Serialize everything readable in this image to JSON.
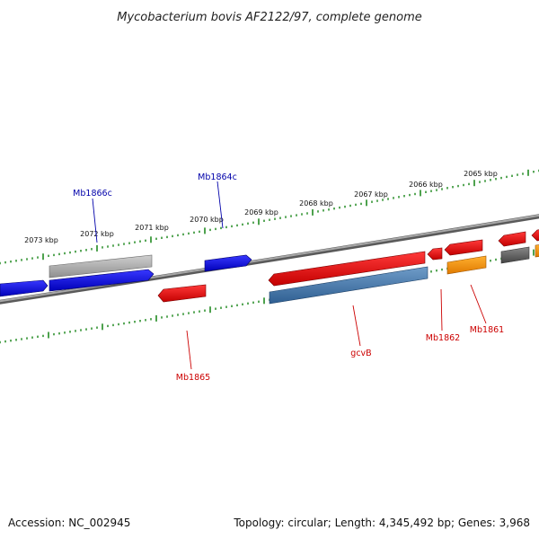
{
  "title": "Mycobacterium bovis AF2122/97, complete genome",
  "footer": {
    "accession": "Accession: NC_002945",
    "summary": "Topology: circular; Length: 4,345,492 bp; Genes: 3,968"
  },
  "colors": {
    "forward_gene": "#0a0ae6",
    "reverse_gene": "#ee1111",
    "rna_gene": "#4a7eb0",
    "pseudo_gene": "#aaaaaa",
    "orange_gene": "#ff9900",
    "dark_gene": "#666666",
    "backbone": "#888888",
    "ticks": "#228b22",
    "label_forward": "#0000aa",
    "label_reverse": "#cc0000"
  },
  "ruler": {
    "labels": [
      "2073 kbp",
      "2072 kbp",
      "2071 kbp",
      "2070 kbp",
      "2069 kbp",
      "2068 kbp",
      "2067 kbp",
      "2066 kbp",
      "2065 kbp"
    ]
  },
  "gene_labels": {
    "mb1866c": "Mb1866c",
    "mb1864c": "Mb1864c",
    "mb1865": "Mb1865",
    "gcvb": "gcvB",
    "mb1862": "Mb1862",
    "mb1861": "Mb1861"
  }
}
